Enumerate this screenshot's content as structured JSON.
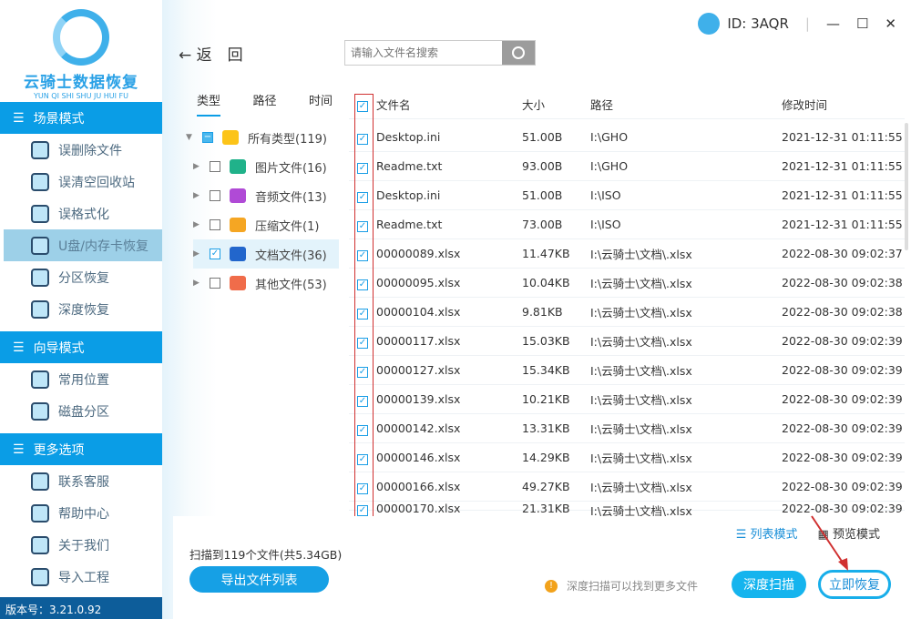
{
  "app": {
    "title": "云骑士数据恢复",
    "subtitle": "YUN QI SHI SHU JU HUI FU",
    "version": "版本号：3.21.0.92",
    "id": "ID: 3AQR"
  },
  "sidebar": {
    "sections": [
      {
        "label": "场景模式",
        "items": [
          "误删除文件",
          "误清空回收站",
          "误格式化",
          "U盘/内存卡恢复",
          "分区恢复",
          "深度恢复"
        ]
      },
      {
        "label": "向导模式",
        "items": [
          "常用位置",
          "磁盘分区"
        ]
      },
      {
        "label": "更多选项",
        "items": [
          "联系客服",
          "帮助中心",
          "关于我们",
          "导入工程"
        ]
      }
    ],
    "active": "U盘/内存卡恢复"
  },
  "toolbar": {
    "back": "返　回",
    "search_placeholder": "请输入文件名搜索"
  },
  "filter_tabs": [
    "类型",
    "路径",
    "时间"
  ],
  "tree": [
    {
      "label": "所有类型(119)",
      "state": "partial",
      "color": "#fcc419"
    },
    {
      "label": "图片文件(16)",
      "state": "unchecked",
      "color": "#20b28a"
    },
    {
      "label": "音频文件(13)",
      "state": "unchecked",
      "color": "#b04ad6"
    },
    {
      "label": "压缩文件(1)",
      "state": "unchecked",
      "color": "#f5a623"
    },
    {
      "label": "文档文件(36)",
      "state": "checked",
      "color": "#2266cc"
    },
    {
      "label": "其他文件(53)",
      "state": "unchecked",
      "color": "#f06c4a"
    }
  ],
  "table": {
    "headers": [
      "文件名",
      "大小",
      "路径",
      "修改时间"
    ],
    "rows": [
      [
        "Desktop.ini",
        "51.00B",
        "I:\\GHO",
        "2021-12-31 01:11:55"
      ],
      [
        "Readme.txt",
        "93.00B",
        "I:\\GHO",
        "2021-12-31 01:11:55"
      ],
      [
        "Desktop.ini",
        "51.00B",
        "I:\\ISO",
        "2021-12-31 01:11:55"
      ],
      [
        "Readme.txt",
        "73.00B",
        "I:\\ISO",
        "2021-12-31 01:11:55"
      ],
      [
        "00000089.xlsx",
        "11.47KB",
        "I:\\云骑士\\文档\\.xlsx",
        "2022-08-30 09:02:37"
      ],
      [
        "00000095.xlsx",
        "10.04KB",
        "I:\\云骑士\\文档\\.xlsx",
        "2022-08-30 09:02:38"
      ],
      [
        "00000104.xlsx",
        "9.81KB",
        "I:\\云骑士\\文档\\.xlsx",
        "2022-08-30 09:02:38"
      ],
      [
        "00000117.xlsx",
        "15.03KB",
        "I:\\云骑士\\文档\\.xlsx",
        "2022-08-30 09:02:39"
      ],
      [
        "00000127.xlsx",
        "15.34KB",
        "I:\\云骑士\\文档\\.xlsx",
        "2022-08-30 09:02:39"
      ],
      [
        "00000139.xlsx",
        "10.21KB",
        "I:\\云骑士\\文档\\.xlsx",
        "2022-08-30 09:02:39"
      ],
      [
        "00000142.xlsx",
        "13.31KB",
        "I:\\云骑士\\文档\\.xlsx",
        "2022-08-30 09:02:39"
      ],
      [
        "00000146.xlsx",
        "14.29KB",
        "I:\\云骑士\\文档\\.xlsx",
        "2022-08-30 09:02:39"
      ],
      [
        "00000166.xlsx",
        "49.27KB",
        "I:\\云骑士\\文档\\.xlsx",
        "2022-08-30 09:02:39"
      ],
      [
        "00000170.xlsx",
        "21.31KB",
        "I:\\云骑士\\文档\\.xlsx",
        "2022-08-30 09:02:39"
      ]
    ]
  },
  "footer": {
    "list_mode": "列表模式",
    "preview_mode": "预览模式",
    "scan_info": "扫描到119个文件(共5.34GB)",
    "export": "导出文件列表",
    "tip": "深度扫描可以找到更多文件",
    "deep_scan": "深度扫描",
    "recover_now": "立即恢复"
  },
  "colors": {
    "accent": "#0a9de6",
    "annotation": "#d03030"
  }
}
